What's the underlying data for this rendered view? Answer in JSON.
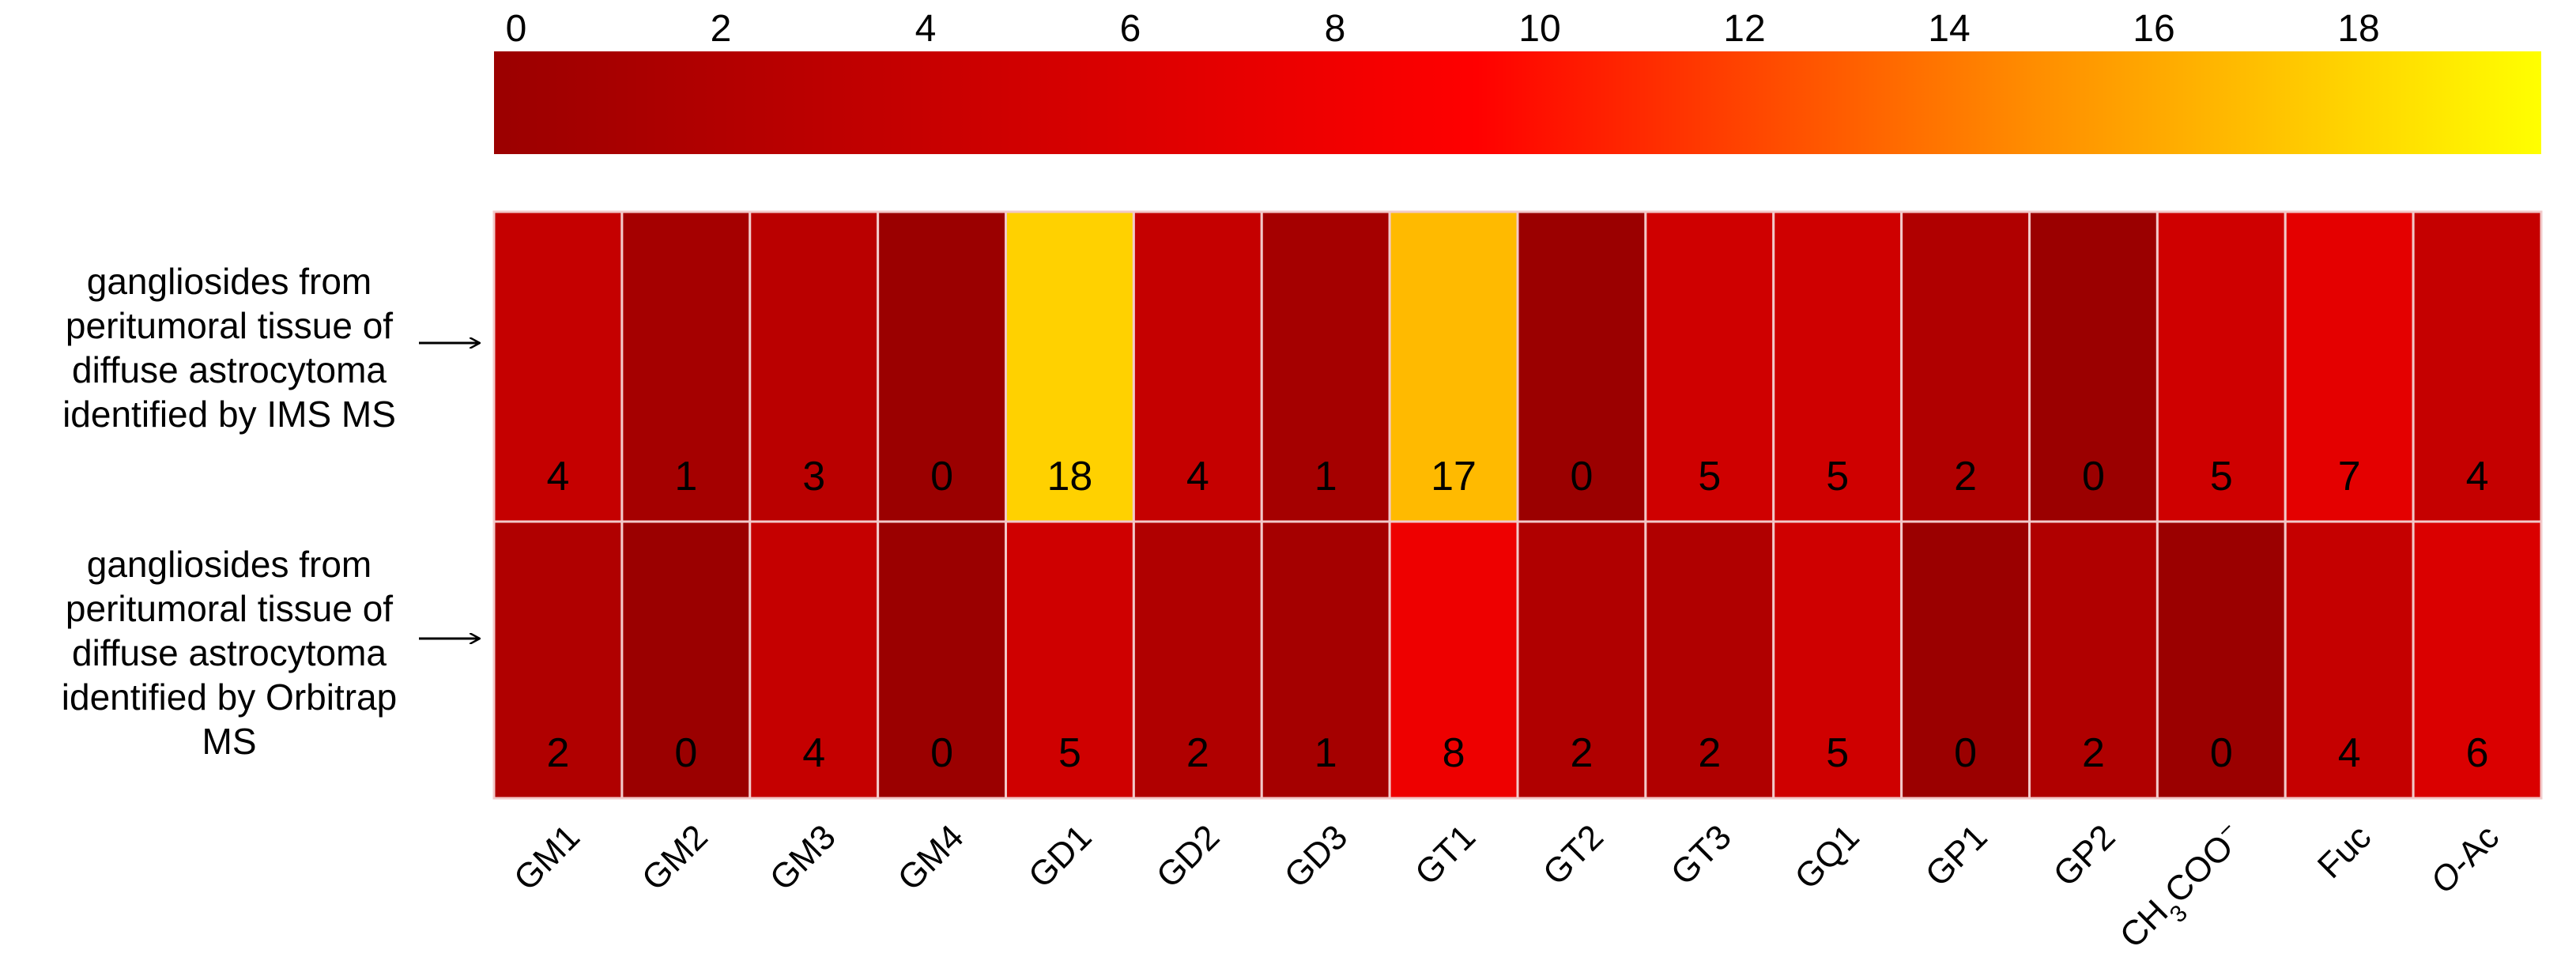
{
  "chart_data": {
    "type": "heatmap",
    "colorbar": {
      "ticks": [
        "0",
        "2",
        "4",
        "6",
        "8",
        "10",
        "12",
        "14",
        "16",
        "18"
      ],
      "range": [
        0,
        20
      ],
      "colors": [
        "#9b0000",
        "#ff0000",
        "#ff8000",
        "#ffff00"
      ]
    },
    "rows": [
      {
        "label_lines": [
          "gangliosides from",
          "peritumoral tissue of",
          "diffuse astrocytoma",
          "identified by IMS MS"
        ],
        "values": [
          4,
          1,
          3,
          0,
          18,
          4,
          1,
          17,
          0,
          5,
          5,
          2,
          0,
          5,
          7,
          4
        ]
      },
      {
        "label_lines": [
          "gangliosides from",
          "peritumoral tissue of",
          "diffuse astrocytoma",
          "identified by Orbitrap",
          "MS"
        ],
        "values": [
          2,
          0,
          4,
          0,
          5,
          2,
          1,
          8,
          2,
          2,
          5,
          0,
          2,
          0,
          4,
          6
        ]
      }
    ],
    "columns": [
      "GM1",
      "GM2",
      "GM3",
      "GM4",
      "GD1",
      "GD2",
      "GD3",
      "GT1",
      "GT2",
      "GT3",
      "GQ1",
      "GP1",
      "GP2",
      "CH3COO−",
      "Fuc",
      "O-Ac"
    ],
    "column_label_parts": [
      [
        {
          "t": "GM1"
        }
      ],
      [
        {
          "t": "GM2"
        }
      ],
      [
        {
          "t": "GM3"
        }
      ],
      [
        {
          "t": "GM4"
        }
      ],
      [
        {
          "t": "GD1"
        }
      ],
      [
        {
          "t": "GD2"
        }
      ],
      [
        {
          "t": "GD3"
        }
      ],
      [
        {
          "t": "GT1"
        }
      ],
      [
        {
          "t": "GT2"
        }
      ],
      [
        {
          "t": "GT3"
        }
      ],
      [
        {
          "t": "GQ1"
        }
      ],
      [
        {
          "t": "GP1"
        }
      ],
      [
        {
          "t": "GP2"
        }
      ],
      [
        {
          "t": "CH"
        },
        {
          "t": "3",
          "sub": true
        },
        {
          "t": "COO"
        },
        {
          "t": "−",
          "sup": true
        }
      ],
      [
        {
          "t": "Fuc"
        }
      ],
      [
        {
          "t": "O",
          "italic": true
        },
        {
          "t": "-Ac"
        }
      ]
    ]
  }
}
